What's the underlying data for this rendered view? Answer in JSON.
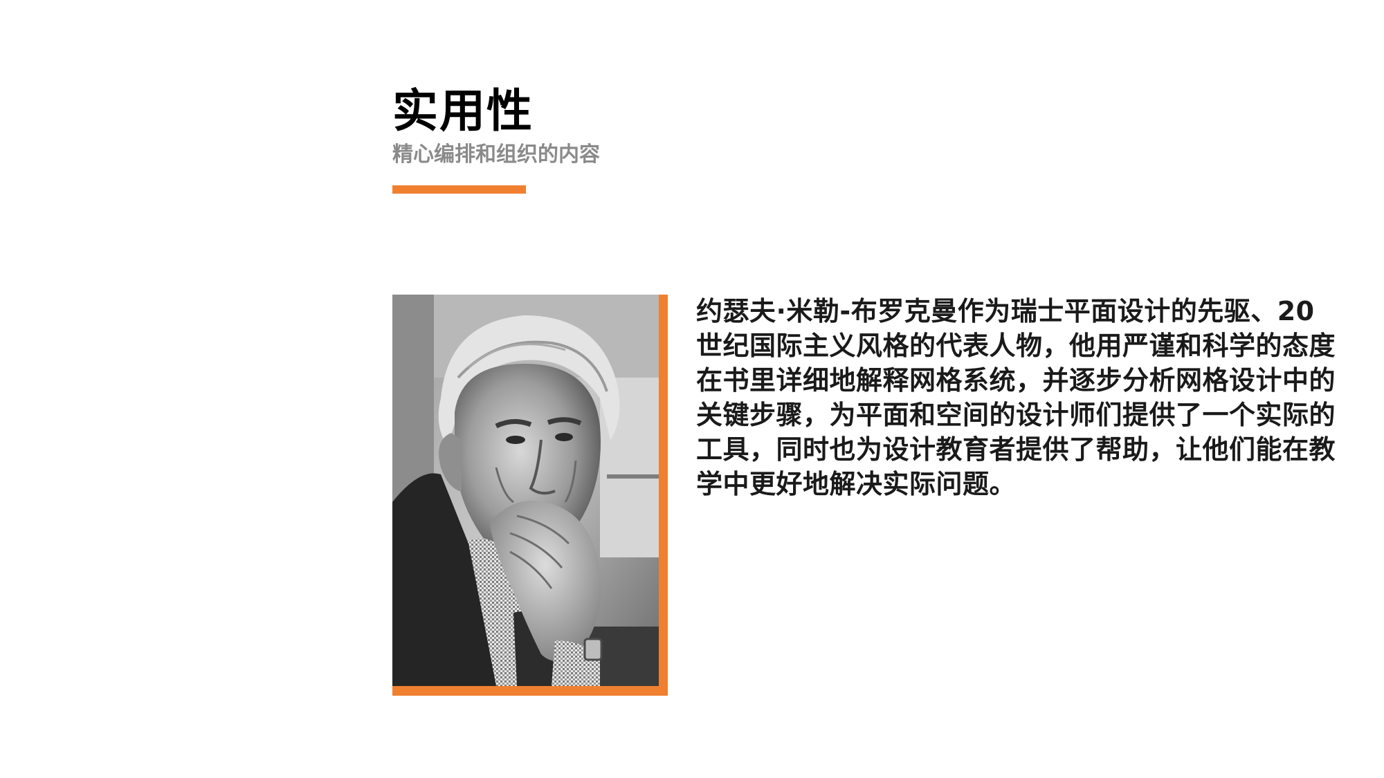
{
  "header": {
    "title": "实用性",
    "subtitle": "精心编排和组织的内容"
  },
  "colors": {
    "accent": "#f08030",
    "title": "#000000",
    "subtitle": "#8a8a8a",
    "body": "#1a1a1a"
  },
  "portrait": {
    "icon": "portrait-photo-icon"
  },
  "content": {
    "paragraph": "约瑟夫·米勒-布罗克曼作为瑞士平面设计的先驱、20世纪国际主义风格的代表人物，他用严谨和科学的态度在书里详细地解释网格系统，并逐步分析网格设计中的关键步骤，为平面和空间的设计师们提供了一个实际的工具，同时也为设计教育者提供了帮助，让他们能在教学中更好地解决实际问题。"
  }
}
